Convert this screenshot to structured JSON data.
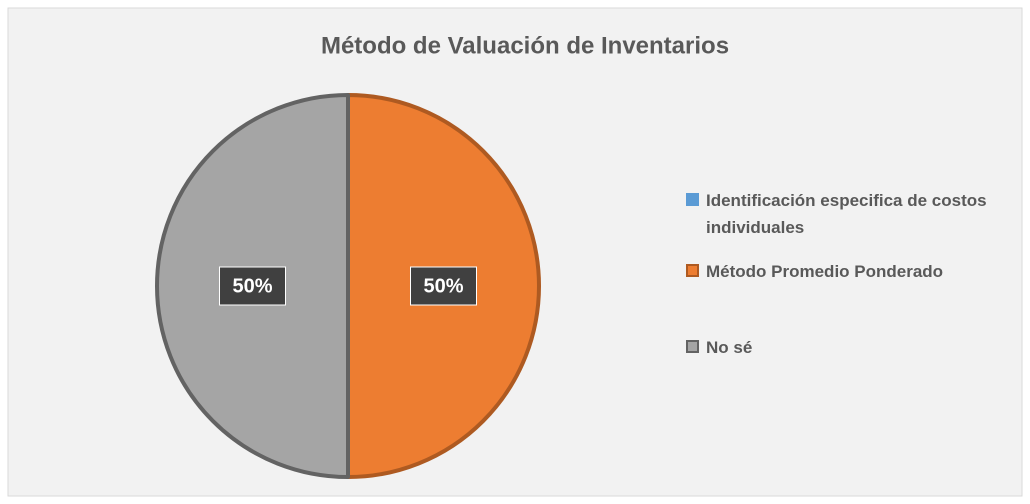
{
  "chart_data": {
    "type": "pie",
    "title": "Método de Valuación de Inventarios",
    "categories": [
      "Identificación especifica de costos individuales",
      "Método Promedio Ponderado",
      "No sé"
    ],
    "values": [
      0,
      50,
      50
    ],
    "value_labels": [
      null,
      "50%",
      "50%"
    ],
    "colors": [
      "#5b9bd5",
      "#ed7d31",
      "#a5a5a5"
    ],
    "border_colors": [
      "#41719c",
      "#ae5a21",
      "#636363"
    ],
    "legend": "right"
  }
}
